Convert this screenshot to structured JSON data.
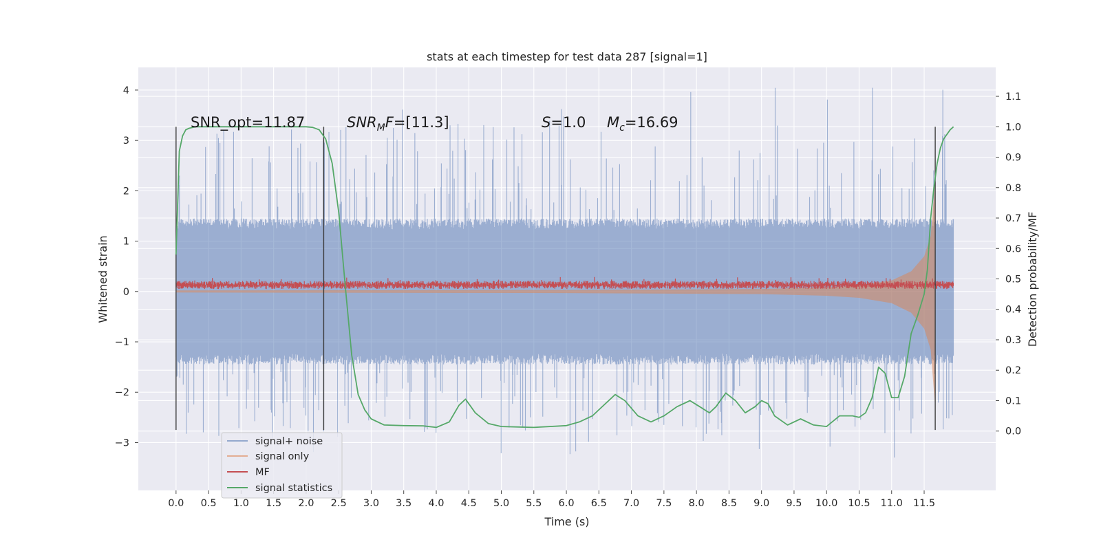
{
  "chart_data": {
    "type": "line",
    "title": "stats at each timestep for test data 287 [signal=1]",
    "xlabel": "Time (s)",
    "ylabel_left": "Whitened strain",
    "ylabel_right": "Detection probability/MF",
    "xlim": [
      -0.58,
      12.6
    ],
    "ylim_left": [
      -3.95,
      4.45
    ],
    "ylim_right": [
      -0.195,
      1.195
    ],
    "x_ticks": [
      "0.0",
      "0.5",
      "1.0",
      "1.5",
      "2.0",
      "2.5",
      "3.0",
      "3.5",
      "4.0",
      "4.5",
      "5.0",
      "5.5",
      "6.0",
      "6.5",
      "7.0",
      "7.5",
      "8.0",
      "8.5",
      "9.0",
      "9.5",
      "10.0",
      "10.5",
      "11.0",
      "11.5"
    ],
    "y_ticks_left": [
      "4",
      "3",
      "2",
      "1",
      "0",
      "−1",
      "−2",
      "−3"
    ],
    "y_ticks_right": [
      "1.1",
      "1.0",
      "0.9",
      "0.8",
      "0.7",
      "0.6",
      "0.5",
      "0.4",
      "0.3",
      "0.2",
      "0.1",
      "0.0"
    ],
    "grid": true,
    "legend_position": "lower-left",
    "colors": {
      "signal_noise": "#4c72b0",
      "signal_only": "#dd8452",
      "mf": "#c44e52",
      "statistics": "#55a868",
      "vlines": "#3a3a3a",
      "plot_bg": "#eaeaf2"
    },
    "annotations": {
      "snr_opt": "SNR_opt=11.87",
      "snr_mf_sym": "SNR",
      "snr_mf_sub": "M",
      "snr_mf_rest": "F=[11.3]",
      "s_sym": "S",
      "s_rest": "=1.0",
      "mc_sym": "M",
      "mc_sub": "c",
      "mc_rest": "=16.69"
    },
    "vertical_lines": [
      {
        "x": 0.0,
        "y_from": -2.75,
        "y_to": 3.27
      },
      {
        "x": 2.27,
        "y_from": -2.75,
        "y_to": 3.27
      },
      {
        "x": 11.67,
        "y_from": -2.75,
        "y_to": 3.27
      }
    ],
    "series": [
      {
        "name": "signal+ noise",
        "axis": "left",
        "description": "whitened noisy strain, dense band roughly within ±1.5 with spikes to about ±4",
        "x_range": [
          0.0,
          11.95
        ],
        "envelope_core": 1.45,
        "peak_high": 4.1,
        "peak_low": -3.37
      },
      {
        "name": "signal only",
        "axis": "left",
        "description": "chirp waveform, small amplitude growing near the merger around 11.7 s",
        "points": [
          [
            0.0,
            0.02
          ],
          [
            6.0,
            0.03
          ],
          [
            9.0,
            0.05
          ],
          [
            10.0,
            0.08
          ],
          [
            10.5,
            0.12
          ],
          [
            11.0,
            0.22
          ],
          [
            11.3,
            0.4
          ],
          [
            11.5,
            0.7
          ],
          [
            11.6,
            1.1
          ],
          [
            11.67,
            2.2
          ]
        ]
      },
      {
        "name": "MF",
        "axis": "left",
        "description": "matched filter output, band around 0.05 to 0.25",
        "level": 0.13,
        "half_width": 0.09
      },
      {
        "name": "signal statistics",
        "axis": "right",
        "x": [
          0.0,
          0.05,
          0.1,
          0.15,
          0.2,
          0.3,
          0.5,
          1.0,
          1.5,
          2.0,
          2.1,
          2.2,
          2.3,
          2.4,
          2.5,
          2.6,
          2.7,
          2.8,
          2.9,
          3.0,
          3.2,
          3.5,
          3.8,
          4.0,
          4.2,
          4.35,
          4.45,
          4.6,
          4.8,
          5.0,
          5.5,
          6.0,
          6.2,
          6.4,
          6.6,
          6.75,
          6.9,
          7.1,
          7.3,
          7.5,
          7.7,
          7.9,
          8.05,
          8.2,
          8.3,
          8.45,
          8.6,
          8.75,
          8.9,
          9.0,
          9.1,
          9.2,
          9.4,
          9.6,
          9.8,
          10.0,
          10.2,
          10.4,
          10.5,
          10.6,
          10.7,
          10.8,
          10.9,
          11.0,
          11.1,
          11.2,
          11.3,
          11.4,
          11.5,
          11.55,
          11.6,
          11.65,
          11.7,
          11.75,
          11.8,
          11.9,
          11.95
        ],
        "values": [
          0.58,
          0.92,
          0.97,
          0.99,
          0.995,
          1.0,
          1.0,
          1.0,
          1.0,
          1.0,
          0.998,
          0.99,
          0.96,
          0.88,
          0.72,
          0.48,
          0.25,
          0.12,
          0.07,
          0.04,
          0.02,
          0.018,
          0.017,
          0.012,
          0.03,
          0.085,
          0.105,
          0.06,
          0.025,
          0.015,
          0.012,
          0.018,
          0.03,
          0.05,
          0.09,
          0.12,
          0.1,
          0.05,
          0.03,
          0.05,
          0.08,
          0.1,
          0.08,
          0.06,
          0.08,
          0.125,
          0.1,
          0.06,
          0.08,
          0.1,
          0.09,
          0.05,
          0.02,
          0.04,
          0.02,
          0.015,
          0.05,
          0.05,
          0.045,
          0.06,
          0.11,
          0.21,
          0.19,
          0.11,
          0.11,
          0.18,
          0.32,
          0.38,
          0.45,
          0.53,
          0.7,
          0.8,
          0.88,
          0.93,
          0.96,
          0.99,
          1.0
        ]
      }
    ]
  }
}
